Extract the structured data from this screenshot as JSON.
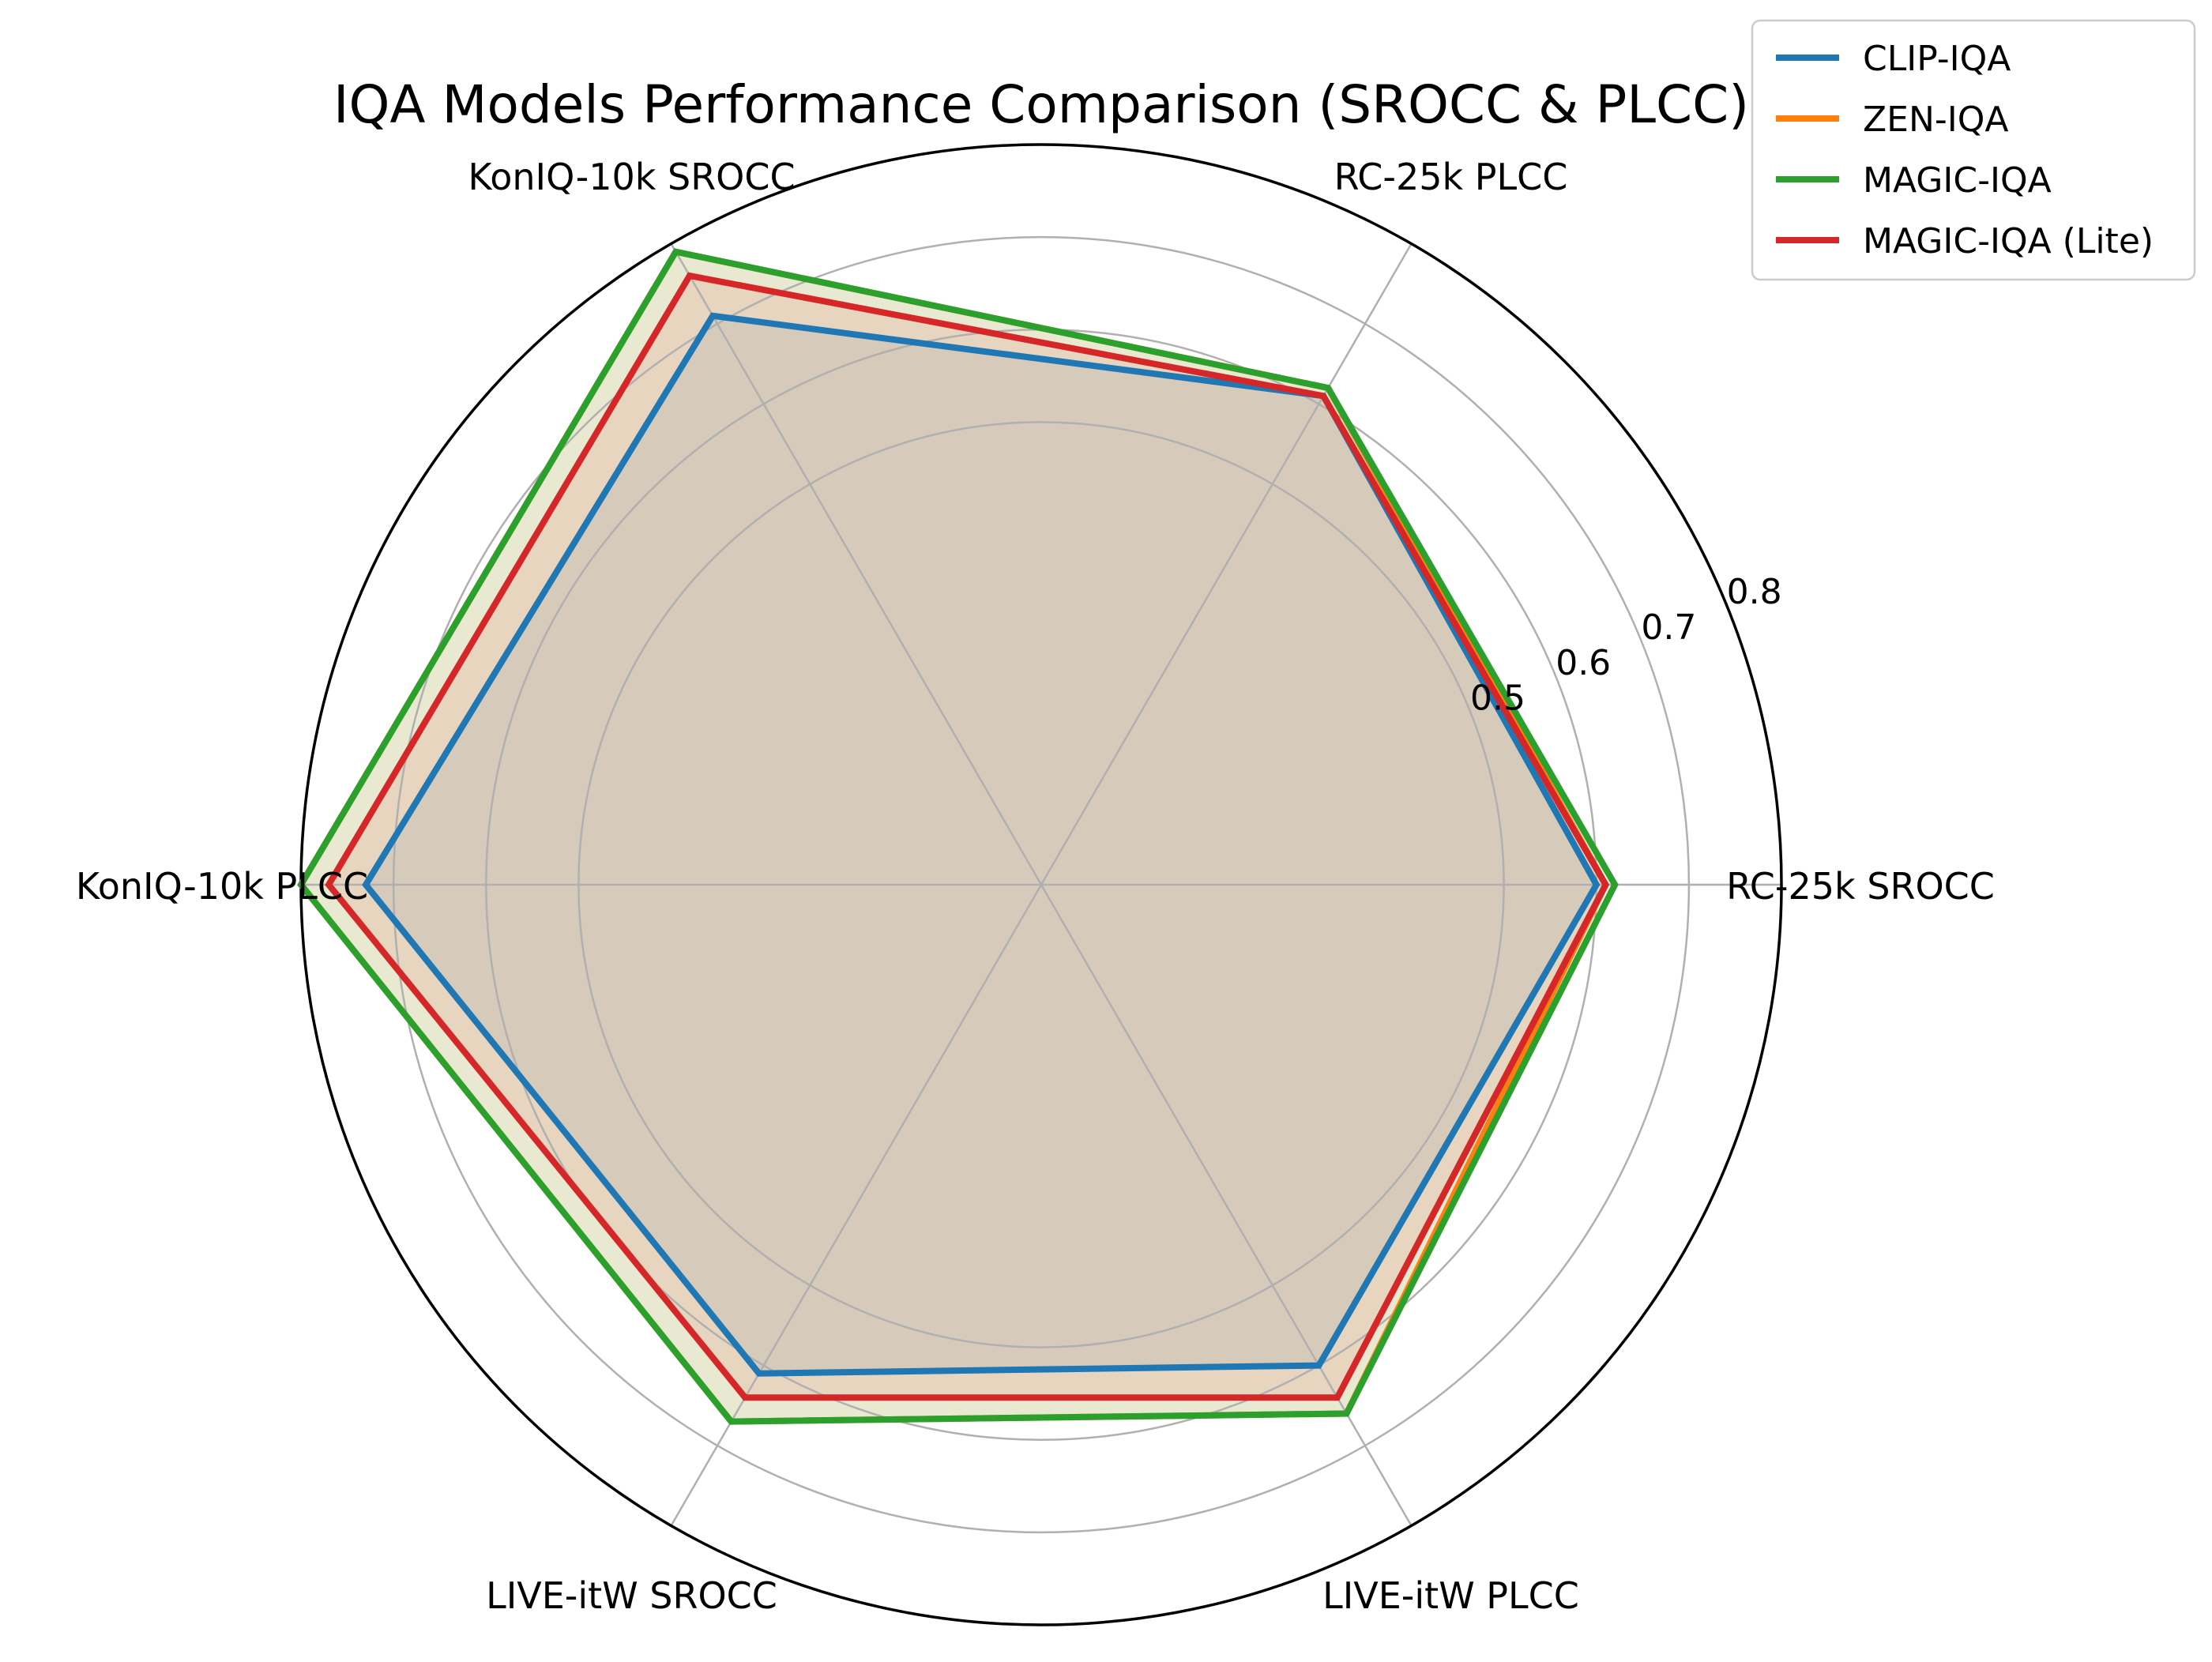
{
  "chart_data": {
    "type": "radar",
    "title": "IQA Models Performance Comparison (SROCC & PLCC)",
    "axes": [
      "RC-25k SROCC",
      "RC-25k PLCC",
      "KonIQ-10k SROCC",
      "KonIQ-10k PLCC",
      "LIVE-itW SROCC",
      "LIVE-itW PLCC"
    ],
    "rticks": [
      0.5,
      0.6,
      0.7,
      0.8
    ],
    "rtick_labels": [
      "0.5",
      "0.6",
      "0.7",
      "0.8"
    ],
    "rlim": [
      0.0,
      0.8
    ],
    "grid": true,
    "legend_position": "top-right",
    "series": [
      {
        "name": "CLIP-IQA",
        "color": "#1f77b4",
        "values": [
          0.6,
          0.61,
          0.71,
          0.73,
          0.61,
          0.6
        ]
      },
      {
        "name": "ZEN-IQA",
        "color": "#ff7f0e",
        "values": [
          0.61,
          0.62,
          0.79,
          0.8,
          0.67,
          0.66
        ]
      },
      {
        "name": "MAGIC-IQA",
        "color": "#2ca02c",
        "values": [
          0.62,
          0.62,
          0.79,
          0.8,
          0.67,
          0.66
        ]
      },
      {
        "name": "MAGIC-IQA (Lite)",
        "color": "#d62728",
        "values": [
          0.61,
          0.61,
          0.76,
          0.77,
          0.64,
          0.64
        ]
      }
    ]
  }
}
